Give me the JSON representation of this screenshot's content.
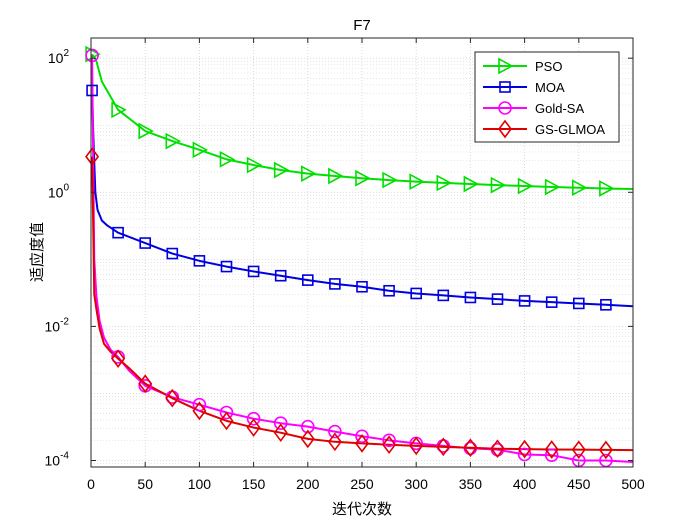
{
  "chart_data": {
    "type": "line",
    "title": "F7",
    "xlabel": "迭代次数",
    "ylabel": "适应度值",
    "yscale": "log",
    "xlim": [
      0,
      500
    ],
    "ylim": [
      8e-05,
      200
    ],
    "grid": true,
    "minor_grid": true,
    "legend_position": "top-right",
    "x_ticks": [
      0,
      50,
      100,
      150,
      200,
      250,
      300,
      350,
      400,
      450,
      500
    ],
    "x_tick_labels": [
      "0",
      "50",
      "100",
      "150",
      "200",
      "250",
      "300",
      "350",
      "400",
      "450",
      "500"
    ],
    "y_ticks": [
      {
        "value": 100,
        "base": "10",
        "exp": "2"
      },
      {
        "value": 1,
        "base": "10",
        "exp": "0"
      },
      {
        "value": 0.01,
        "base": "10",
        "exp": "-2"
      },
      {
        "value": 0.0001,
        "base": "10",
        "exp": "-4"
      }
    ],
    "marker_step": 25,
    "series": [
      {
        "name": "PSO",
        "color": "#00e000",
        "marker": "triangle-right",
        "x": [
          1,
          5,
          10,
          25,
          50,
          75,
          100,
          125,
          150,
          175,
          200,
          225,
          250,
          275,
          300,
          325,
          350,
          375,
          400,
          425,
          450,
          475,
          500
        ],
        "values": [
          115,
          90,
          45,
          17,
          8.2,
          5.8,
          4.3,
          3.1,
          2.55,
          2.15,
          1.9,
          1.75,
          1.62,
          1.52,
          1.44,
          1.38,
          1.33,
          1.28,
          1.24,
          1.2,
          1.17,
          1.14,
          1.12
        ]
      },
      {
        "name": "MOA",
        "color": "#0000e0",
        "marker": "square",
        "x": [
          1,
          2,
          4,
          6,
          10,
          15,
          25,
          50,
          75,
          100,
          125,
          150,
          175,
          200,
          225,
          250,
          275,
          300,
          325,
          350,
          375,
          400,
          425,
          450,
          475,
          500
        ],
        "values": [
          33,
          8,
          1.0,
          0.55,
          0.38,
          0.32,
          0.25,
          0.175,
          0.122,
          0.095,
          0.078,
          0.066,
          0.057,
          0.049,
          0.043,
          0.039,
          0.034,
          0.031,
          0.029,
          0.027,
          0.0255,
          0.024,
          0.023,
          0.022,
          0.021,
          0.02
        ]
      },
      {
        "name": "Gold-SA",
        "color": "#ff00ff",
        "marker": "circle",
        "x": [
          1,
          3,
          5,
          8,
          12,
          18,
          25,
          35,
          50,
          75,
          100,
          125,
          150,
          175,
          200,
          225,
          250,
          275,
          300,
          325,
          350,
          375,
          400,
          425,
          450,
          475,
          500
        ],
        "values": [
          110,
          0.1,
          0.028,
          0.012,
          0.0068,
          0.0045,
          0.0035,
          0.0022,
          0.0013,
          0.00088,
          0.00068,
          0.00052,
          0.00042,
          0.00036,
          0.00032,
          0.00027,
          0.00023,
          0.0002,
          0.00018,
          0.000165,
          0.000152,
          0.000145,
          0.000123,
          0.00012,
          0.0001,
          0.0001,
          9.5e-05
        ]
      },
      {
        "name": "GS-GLMOA",
        "color": "#e00000",
        "marker": "diamond",
        "x": [
          1,
          2,
          3,
          5,
          8,
          12,
          18,
          25,
          35,
          50,
          75,
          100,
          125,
          150,
          175,
          200,
          225,
          250,
          275,
          300,
          325,
          350,
          375,
          400,
          425,
          450,
          475,
          500
        ],
        "values": [
          3.4,
          0.35,
          0.03,
          0.018,
          0.0092,
          0.0055,
          0.0042,
          0.0033,
          0.0024,
          0.0014,
          0.00085,
          0.00055,
          0.00039,
          0.00031,
          0.00026,
          0.00021,
          0.00019,
          0.00018,
          0.000172,
          0.000165,
          0.00016,
          0.000155,
          0.00015,
          0.000148,
          0.000146,
          0.000145,
          0.000144,
          0.000143
        ]
      }
    ]
  }
}
